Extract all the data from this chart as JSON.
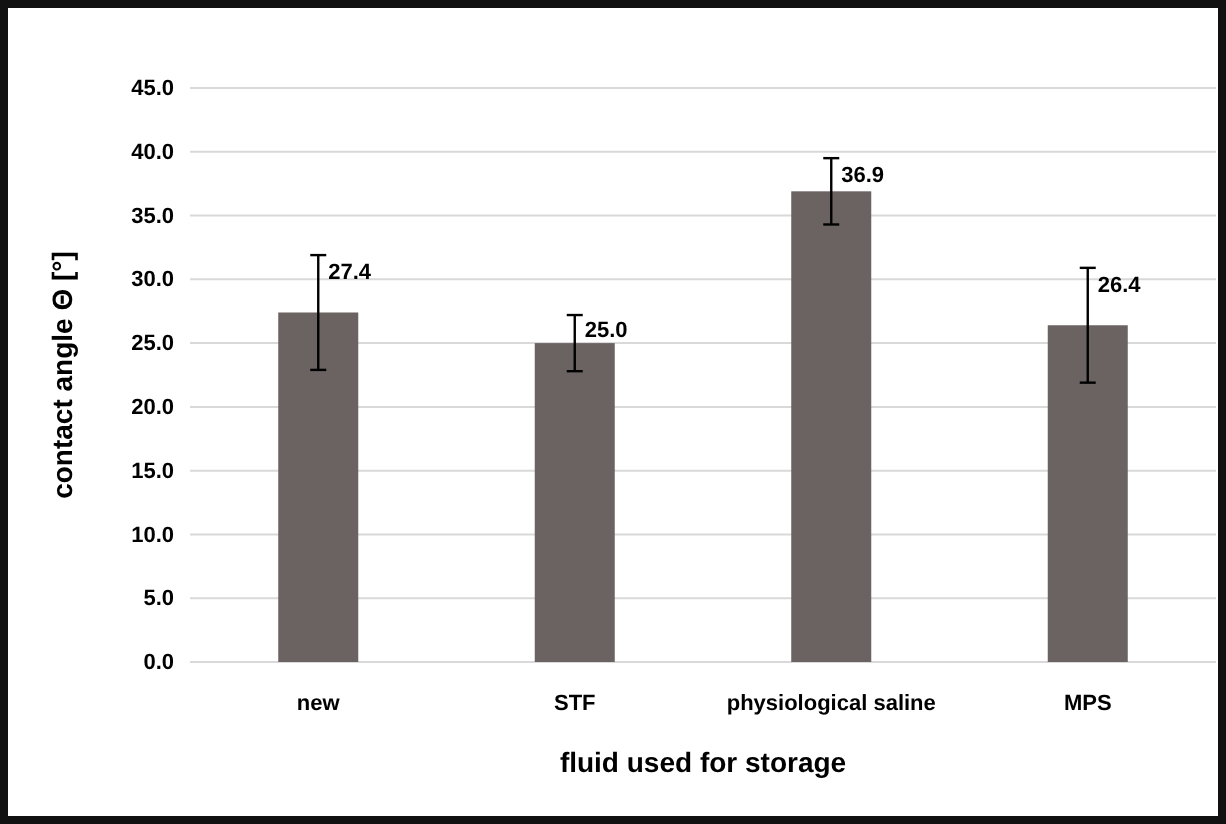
{
  "chart_data": {
    "type": "bar",
    "xlabel": "fluid used for storage",
    "ylabel": "contact angle Θ [°]",
    "categories": [
      "new",
      "STF",
      "physiological saline",
      "MPS"
    ],
    "values": [
      27.4,
      25.0,
      36.9,
      26.4
    ],
    "errors": [
      4.5,
      2.2,
      2.6,
      4.5
    ],
    "color": "#6b6262",
    "value_labels": [
      "27.4",
      "25.0",
      "36.9",
      "26.4"
    ],
    "ylim": [
      0,
      45
    ],
    "yticks": [
      {
        "value": 0,
        "label": "0.0"
      },
      {
        "value": 5,
        "label": "5.0"
      },
      {
        "value": 10,
        "label": "10.0"
      },
      {
        "value": 15,
        "label": "15.0"
      },
      {
        "value": 20,
        "label": "20.0"
      },
      {
        "value": 25,
        "label": "25.0"
      },
      {
        "value": 30,
        "label": "30.0"
      },
      {
        "value": 35,
        "label": "35.0"
      },
      {
        "value": 40,
        "label": "40.0"
      },
      {
        "value": 45,
        "label": "45.0"
      }
    ],
    "grid": "y"
  }
}
